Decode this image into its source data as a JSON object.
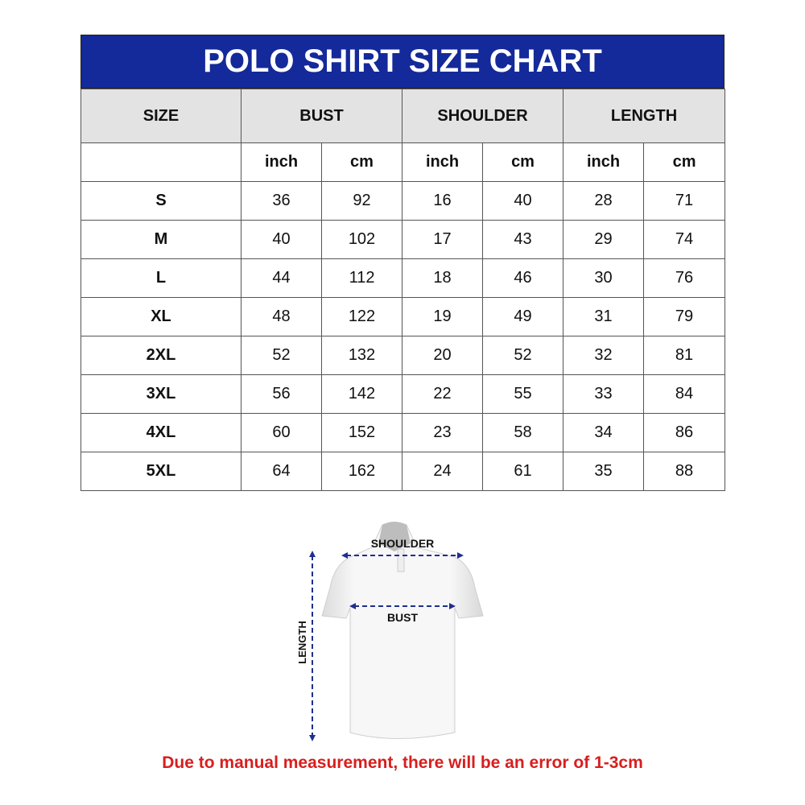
{
  "title": "POLO SHIRT SIZE CHART",
  "colors": {
    "header_blue": "#14299a",
    "header_gray": "#e3e3e3",
    "note_red": "#d81e1e",
    "arrow_blue": "#1f2f8f"
  },
  "table": {
    "headers": [
      "SIZE",
      "BUST",
      "SHOULDER",
      "LENGTH"
    ],
    "units": [
      "inch",
      "cm",
      "inch",
      "cm",
      "inch",
      "cm"
    ],
    "rows": [
      [
        "S",
        "36",
        "92",
        "16",
        "40",
        "28",
        "71"
      ],
      [
        "M",
        "40",
        "102",
        "17",
        "43",
        "29",
        "74"
      ],
      [
        "L",
        "44",
        "112",
        "18",
        "46",
        "30",
        "76"
      ],
      [
        "XL",
        "48",
        "122",
        "19",
        "49",
        "31",
        "79"
      ],
      [
        "2XL",
        "52",
        "132",
        "20",
        "52",
        "32",
        "81"
      ],
      [
        "3XL",
        "56",
        "142",
        "22",
        "55",
        "33",
        "84"
      ],
      [
        "4XL",
        "60",
        "152",
        "23",
        "58",
        "34",
        "86"
      ],
      [
        "5XL",
        "64",
        "162",
        "24",
        "61",
        "35",
        "88"
      ]
    ]
  },
  "diagram": {
    "shoulder_label": "SHOULDER",
    "bust_label": "BUST",
    "length_label": "LENGTH"
  },
  "note": "Due to manual measurement, there will be an error of 1-3cm"
}
